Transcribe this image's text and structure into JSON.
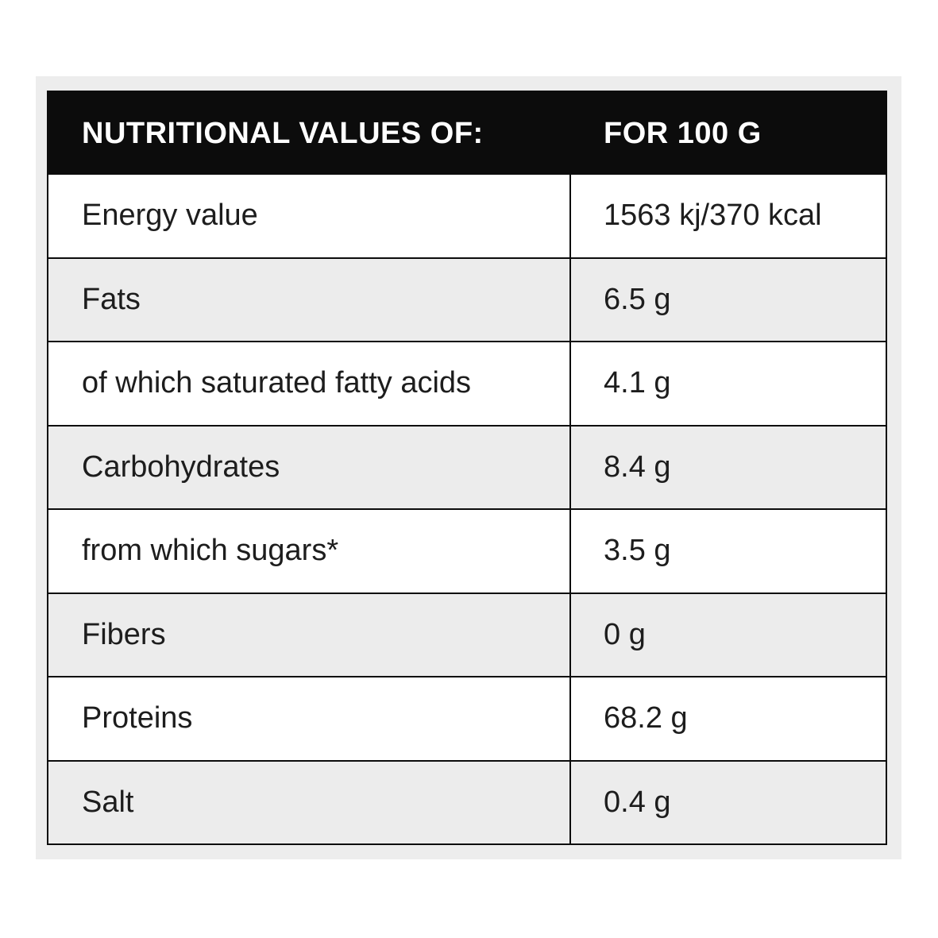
{
  "table": {
    "header": {
      "col_label": "NUTRITIONAL VALUES OF:",
      "col_value": "FOR 100 G"
    },
    "rows": [
      {
        "label": "Energy value",
        "value": "1563 kj/370 kcal"
      },
      {
        "label": "Fats",
        "value": "6.5 g"
      },
      {
        "label": "of which saturated fatty acids",
        "value": "4.1 g"
      },
      {
        "label": "Carbohydrates",
        "value": "8.4 g"
      },
      {
        "label": "from which sugars*",
        "value": "3.5 g"
      },
      {
        "label": "Fibers",
        "value": "0 g"
      },
      {
        "label": "Proteins",
        "value": "68.2 g"
      },
      {
        "label": "Salt",
        "value": "0.4 g"
      }
    ]
  },
  "colors": {
    "page_bg": "#ffffff",
    "panel_bg": "#ededed",
    "header_bg": "#0c0c0c",
    "header_text": "#ffffff",
    "row_alt_bg": "#ececec",
    "border": "#0c0c0c",
    "text": "#1d1d1d"
  }
}
